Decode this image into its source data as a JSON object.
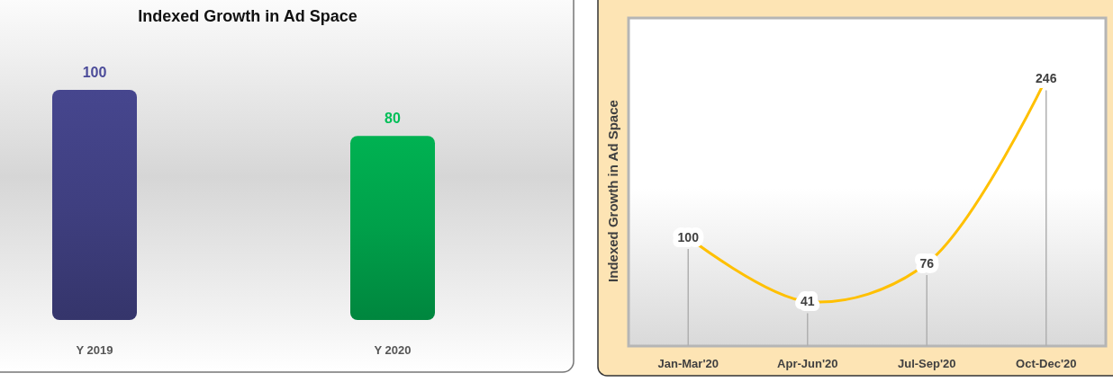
{
  "chart_data": [
    {
      "type": "bar",
      "title": "Indexed Growth in Ad Space",
      "categories": [
        "Y 2019",
        "Y 2020"
      ],
      "values": [
        100,
        80
      ],
      "colors": [
        "#3f3f80",
        "#00a04a"
      ],
      "data_labels": true
    },
    {
      "type": "line",
      "ylabel": "Indexed Growth in Ad Space",
      "categories": [
        "Jan-Mar'20",
        "Apr-Jun'20",
        "Jul-Sep'20",
        "Oct-Dec'20"
      ],
      "series": [
        {
          "color": "#ffc000",
          "values": [
            100,
            41,
            76,
            246
          ]
        }
      ],
      "data_labels": true
    }
  ]
}
